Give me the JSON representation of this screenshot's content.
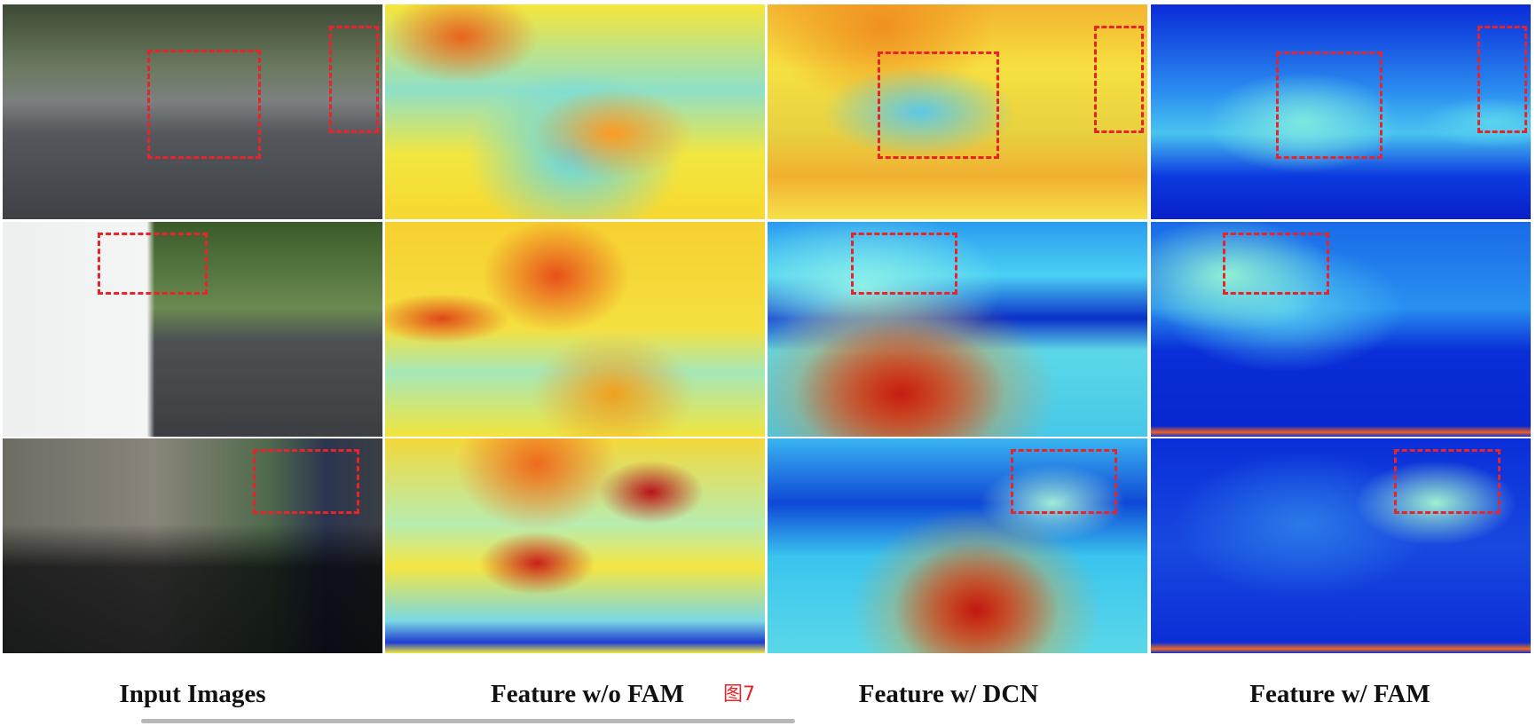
{
  "figure": {
    "captions": [
      "Input Images",
      "Feature w/o FAM",
      "Feature w/ DCN",
      "Feature w/ FAM"
    ],
    "figure_label": "图7"
  }
}
